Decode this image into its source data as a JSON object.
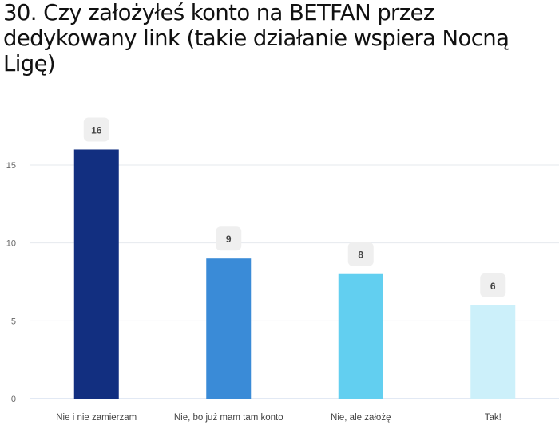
{
  "chart_data": {
    "type": "bar",
    "title": "30. Czy założyłeś konto na BETFAN przez dedykowany link (takie działanie wspiera Nocną Ligę)",
    "categories": [
      "Nie i nie zamierzam",
      "Nie, bo już mam tam konto",
      "Nie, ale założę",
      "Tak!"
    ],
    "values": [
      16,
      9,
      8,
      6
    ],
    "data_labels": [
      "16",
      "9",
      "8",
      "6"
    ],
    "colors": [
      "#122f80",
      "#3a8bd7",
      "#62cff0",
      "#ccf0fa"
    ],
    "yticks": [
      "0",
      "5",
      "10",
      "15"
    ],
    "ylim": [
      0,
      15
    ],
    "grid": true,
    "legend": "none"
  }
}
